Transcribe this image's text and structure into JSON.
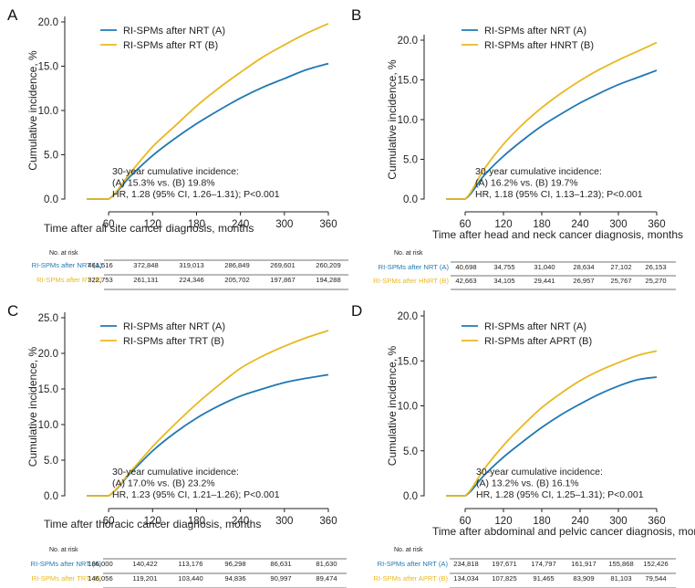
{
  "chart_data": [
    {
      "type": "line",
      "panel": "A",
      "xlabel": "Time after all site cancer diagnosis, months",
      "ylabel": "Cumulative incidence, %",
      "x_ticks": [
        60,
        120,
        180,
        240,
        300,
        360
      ],
      "y_ticks": [
        "0.0",
        "5.0",
        "10.0",
        "15.0",
        "20.0"
      ],
      "xlim": [
        30,
        360
      ],
      "ylim": [
        0,
        20.5
      ],
      "series": [
        {
          "name": "RI-SPMs after NRT (A)",
          "color": "#1f78b4",
          "x": [
            30,
            60,
            90,
            120,
            150,
            180,
            210,
            240,
            270,
            300,
            330,
            360
          ],
          "y": [
            0,
            0,
            2.6,
            4.9,
            6.8,
            8.5,
            10.0,
            11.4,
            12.6,
            13.6,
            14.6,
            15.3
          ]
        },
        {
          "name": "RI-SPMs after RT (B)",
          "color": "#e8b820",
          "x": [
            30,
            60,
            90,
            120,
            150,
            180,
            210,
            240,
            270,
            300,
            330,
            360
          ],
          "y": [
            0,
            0,
            3.0,
            5.9,
            8.2,
            10.5,
            12.5,
            14.3,
            16.0,
            17.4,
            18.7,
            19.8
          ]
        }
      ],
      "annotation": [
        "30-year cumulative incidence:",
        "(A) 15.3% vs. (B) 19.8%",
        "HR, 1.28 (95% CI, 1.26–1.31); P<0.001"
      ],
      "risk_table": {
        "header": "No. at risk",
        "rows": [
          {
            "label": "RI-SPMs after NRT (A)",
            "color": "#1f78b4",
            "values": [
              "461,516",
              "372,848",
              "319,013",
              "286,849",
              "269,601",
              "260,209"
            ]
          },
          {
            "label": "RI-SPMs after RT (B)",
            "color": "#e8b820",
            "values": [
              "322,753",
              "261,131",
              "224,346",
              "205,702",
              "197,867",
              "194,288"
            ]
          }
        ]
      }
    },
    {
      "type": "line",
      "panel": "B",
      "xlabel": "Time after head and neck cancer diagnosis, months",
      "ylabel": "Cumulative incidence, %",
      "x_ticks": [
        60,
        120,
        180,
        240,
        300,
        360
      ],
      "y_ticks": [
        "0.0",
        "5.0",
        "10.0",
        "15.0",
        "20.0"
      ],
      "xlim": [
        30,
        360
      ],
      "ylim": [
        0,
        20.5
      ],
      "series": [
        {
          "name": "RI-SPMs after NRT (A)",
          "color": "#1f78b4",
          "x": [
            30,
            60,
            90,
            120,
            150,
            180,
            210,
            240,
            270,
            300,
            330,
            360
          ],
          "y": [
            0,
            0,
            3.0,
            5.4,
            7.4,
            9.2,
            10.7,
            12.1,
            13.3,
            14.4,
            15.3,
            16.2
          ]
        },
        {
          "name": "RI-SPMs after HNRT (B)",
          "color": "#e8b820",
          "x": [
            30,
            60,
            90,
            120,
            150,
            180,
            210,
            240,
            270,
            300,
            330,
            360
          ],
          "y": [
            0,
            0,
            3.8,
            6.9,
            9.4,
            11.5,
            13.3,
            14.9,
            16.3,
            17.5,
            18.6,
            19.7
          ]
        }
      ],
      "annotation": [
        "30-year cumulative incidence:",
        "(A) 16.2% vs. (B) 19.7%",
        "HR, 1.18 (95% CI, 1.13–1.23); P<0.001"
      ],
      "risk_table": {
        "header": "No. at risk",
        "rows": [
          {
            "label": "RI-SPMs after NRT (A)",
            "color": "#1f78b4",
            "values": [
              "40,698",
              "34,755",
              "31,040",
              "28,634",
              "27,102",
              "26,153"
            ]
          },
          {
            "label": "RI-SPMs after HNRT (B)",
            "color": "#e8b820",
            "values": [
              "42,663",
              "34,105",
              "29,441",
              "26,957",
              "25,767",
              "25,270"
            ]
          }
        ]
      }
    },
    {
      "type": "line",
      "panel": "C",
      "xlabel": "Time after thoracic cancer diagnosis, months",
      "ylabel": "Cumulative incidence, %",
      "x_ticks": [
        60,
        120,
        180,
        240,
        300,
        360
      ],
      "y_ticks": [
        "0.0",
        "5.0",
        "10.0",
        "15.0",
        "20.0",
        "25.0"
      ],
      "xlim": [
        30,
        360
      ],
      "ylim": [
        0,
        25.5
      ],
      "series": [
        {
          "name": "RI-SPMs after NRT (A)",
          "color": "#1f78b4",
          "x": [
            30,
            60,
            90,
            120,
            150,
            180,
            210,
            240,
            270,
            300,
            330,
            360
          ],
          "y": [
            0,
            0,
            3.2,
            6.3,
            8.8,
            10.9,
            12.6,
            14.0,
            15.0,
            15.9,
            16.5,
            17.0
          ]
        },
        {
          "name": "RI-SPMs after TRT (B)",
          "color": "#e8b820",
          "x": [
            30,
            60,
            90,
            120,
            150,
            180,
            210,
            240,
            270,
            300,
            330,
            360
          ],
          "y": [
            0,
            0,
            3.4,
            6.9,
            10.0,
            12.9,
            15.5,
            17.9,
            19.6,
            21.0,
            22.2,
            23.2
          ]
        }
      ],
      "annotation": [
        "30-year cumulative incidence:",
        "(A) 17.0% vs. (B) 23.2%",
        "HR, 1.23 (95% CI, 1.21–1.26); P<0.001"
      ],
      "risk_table": {
        "header": "No. at risk",
        "rows": [
          {
            "label": "RI-SPMs after NRT (A)",
            "color": "#1f78b4",
            "values": [
              "186,000",
              "140,422",
              "113,176",
              "96,298",
              "86,631",
              "81,630"
            ]
          },
          {
            "label": "RI-SPMs after TRT (B)",
            "color": "#e8b820",
            "values": [
              "146,056",
              "119,201",
              "103,440",
              "94,836",
              "90,997",
              "89,474"
            ]
          }
        ]
      }
    },
    {
      "type": "line",
      "panel": "D",
      "xlabel": "Time after abdominal and pelvic cancer diagnosis, months",
      "ylabel": "Cumulative incidence, %",
      "x_ticks": [
        60,
        120,
        180,
        240,
        300,
        360
      ],
      "y_ticks": [
        "0.0",
        "5.0",
        "10.0",
        "15.0",
        "20.0"
      ],
      "xlim": [
        30,
        360
      ],
      "ylim": [
        0,
        20.5
      ],
      "series": [
        {
          "name": "RI-SPMs after NRT (A)",
          "color": "#1f78b4",
          "x": [
            30,
            60,
            90,
            120,
            150,
            180,
            210,
            240,
            270,
            300,
            330,
            360
          ],
          "y": [
            0,
            0,
            2.3,
            4.3,
            6.0,
            7.6,
            9.0,
            10.2,
            11.3,
            12.2,
            12.9,
            13.2
          ]
        },
        {
          "name": "RI-SPMs after APRT (B)",
          "color": "#e8b820",
          "x": [
            30,
            60,
            90,
            120,
            150,
            180,
            210,
            240,
            270,
            300,
            330,
            360
          ],
          "y": [
            0,
            0,
            3.0,
            5.6,
            7.8,
            9.8,
            11.4,
            12.8,
            13.9,
            14.8,
            15.6,
            16.1
          ]
        }
      ],
      "annotation": [
        "30-year cumulative incidence:",
        "(A) 13.2% vs. (B) 16.1%",
        "HR, 1.28 (95% CI, 1.25–1.31); P<0.001"
      ],
      "risk_table": {
        "header": "No. at risk",
        "rows": [
          {
            "label": "RI-SPMs after NRT (A)",
            "color": "#1f78b4",
            "values": [
              "234,818",
              "197,671",
              "174,797",
              "161,917",
              "155,868",
              "152,426"
            ]
          },
          {
            "label": "RI-SPMs after APRT (B)",
            "color": "#e8b820",
            "values": [
              "134,034",
              "107,825",
              "91,465",
              "83,909",
              "81,103",
              "79,544"
            ]
          }
        ]
      }
    }
  ]
}
